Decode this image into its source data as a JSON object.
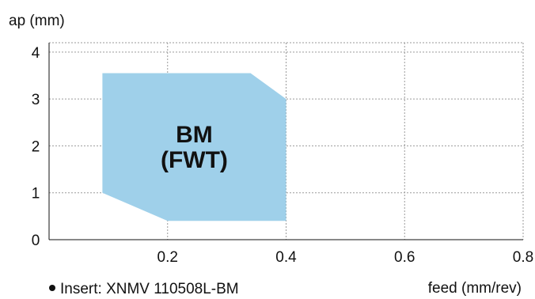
{
  "chart_data": {
    "type": "area",
    "ylabel": "ap (mm)",
    "xlabel": "feed (mm/rev)",
    "xlim": [
      0.0,
      0.8
    ],
    "ylim": [
      0,
      4.2
    ],
    "xticks": [
      0.2,
      0.4,
      0.6,
      0.8
    ],
    "yticks": [
      0,
      1,
      2,
      3,
      4
    ],
    "grid": true,
    "series": [
      {
        "name": "BM (FWT)",
        "label_lines": [
          "BM",
          "(FWT)"
        ],
        "color": "#9fd0ea",
        "x": [
          0.09,
          0.34,
          0.4,
          0.4,
          0.2,
          0.09
        ],
        "y": [
          3.55,
          3.55,
          3.0,
          0.4,
          0.4,
          1.0
        ]
      }
    ]
  },
  "note": {
    "text": "Insert: XNMV 110508L-BM"
  }
}
